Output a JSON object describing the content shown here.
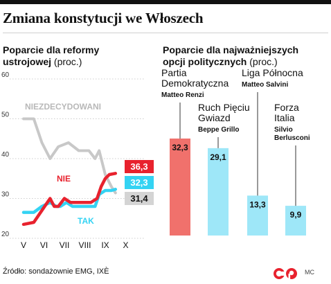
{
  "title": "Zmiana konstytucji we Włoszech",
  "left_subtitle": {
    "bold": "Poparcie dla reformy ustrojowej",
    "light": "(proc.)"
  },
  "right_subtitle": {
    "bold": "Poparcie dla najważniejszych opcji politycznych",
    "light": "(proc.)"
  },
  "source": "Źródło: sondażownie EMG, IXÈ",
  "credit": "MC",
  "colors": {
    "red": "#e8222e",
    "cyan": "#34d3f3",
    "gray": "#c8c8c8",
    "dark": "#111111"
  },
  "chart_data": [
    {
      "type": "line",
      "x_months": [
        "V",
        "VI",
        "VII",
        "VIII",
        "IX",
        "X"
      ],
      "y_ticks": [
        20,
        30,
        40,
        50,
        60
      ],
      "ylim": [
        20,
        60
      ],
      "grid": true,
      "series": [
        {
          "name": "NIEZDECYDOWANI",
          "color": "#c8c8c8",
          "end_label": "31,4",
          "points": [
            [
              0,
              50
            ],
            [
              0.5,
              50
            ],
            [
              0.9,
              44
            ],
            [
              1.3,
              40
            ],
            [
              1.7,
              43
            ],
            [
              2.2,
              44
            ],
            [
              2.7,
              42
            ],
            [
              3.2,
              42
            ],
            [
              3.5,
              40
            ],
            [
              3.7,
              42
            ],
            [
              4.0,
              36
            ],
            [
              4.3,
              33
            ],
            [
              4.5,
              31.4
            ]
          ]
        },
        {
          "name": "NIE",
          "color": "#e8222e",
          "end_label": "36,3",
          "points": [
            [
              0,
              23.5
            ],
            [
              0.5,
              24
            ],
            [
              0.9,
              27
            ],
            [
              1.3,
              30
            ],
            [
              1.5,
              28
            ],
            [
              1.7,
              28
            ],
            [
              2.0,
              30
            ],
            [
              2.3,
              29
            ],
            [
              2.6,
              29
            ],
            [
              2.8,
              29
            ],
            [
              3.3,
              29
            ],
            [
              3.6,
              30
            ],
            [
              3.8,
              33
            ],
            [
              4.0,
              35
            ],
            [
              4.2,
              36
            ],
            [
              4.5,
              36.3
            ]
          ]
        },
        {
          "name": "TAK",
          "color": "#34d3f3",
          "end_label": "32,3",
          "points": [
            [
              0,
              26.5
            ],
            [
              0.5,
              26.5
            ],
            [
              0.9,
              28
            ],
            [
              1.3,
              29
            ],
            [
              1.6,
              28
            ],
            [
              1.8,
              28
            ],
            [
              2.1,
              29
            ],
            [
              2.4,
              28
            ],
            [
              2.7,
              28
            ],
            [
              3.2,
              28
            ],
            [
              3.5,
              28
            ],
            [
              3.7,
              31
            ],
            [
              4.0,
              32
            ],
            [
              4.3,
              32
            ],
            [
              4.5,
              32.3
            ]
          ]
        }
      ]
    },
    {
      "type": "bar",
      "categories": [
        {
          "party": [
            "Partia",
            "Demokratyczna"
          ],
          "leader": [
            "Matteo Renzi"
          ],
          "value": 32.3,
          "label": "32,3",
          "color": "#f0716c"
        },
        {
          "party": [
            "Ruch Pięciu",
            "Gwiazd"
          ],
          "leader": [
            "Beppe Grillo"
          ],
          "value": 29.1,
          "label": "29,1",
          "color": "#9ee7f8"
        },
        {
          "party": [
            "Liga Północna"
          ],
          "leader": [
            "Matteo Salvini"
          ],
          "value": 13.3,
          "label": "13,3",
          "color": "#9ee7f8"
        },
        {
          "party": [
            "Forza",
            "Italia"
          ],
          "leader": [
            "Silvio",
            "Berlusconi"
          ],
          "value": 9.9,
          "label": "9,9",
          "color": "#9ee7f8"
        }
      ],
      "ylim": [
        0,
        40
      ]
    }
  ]
}
